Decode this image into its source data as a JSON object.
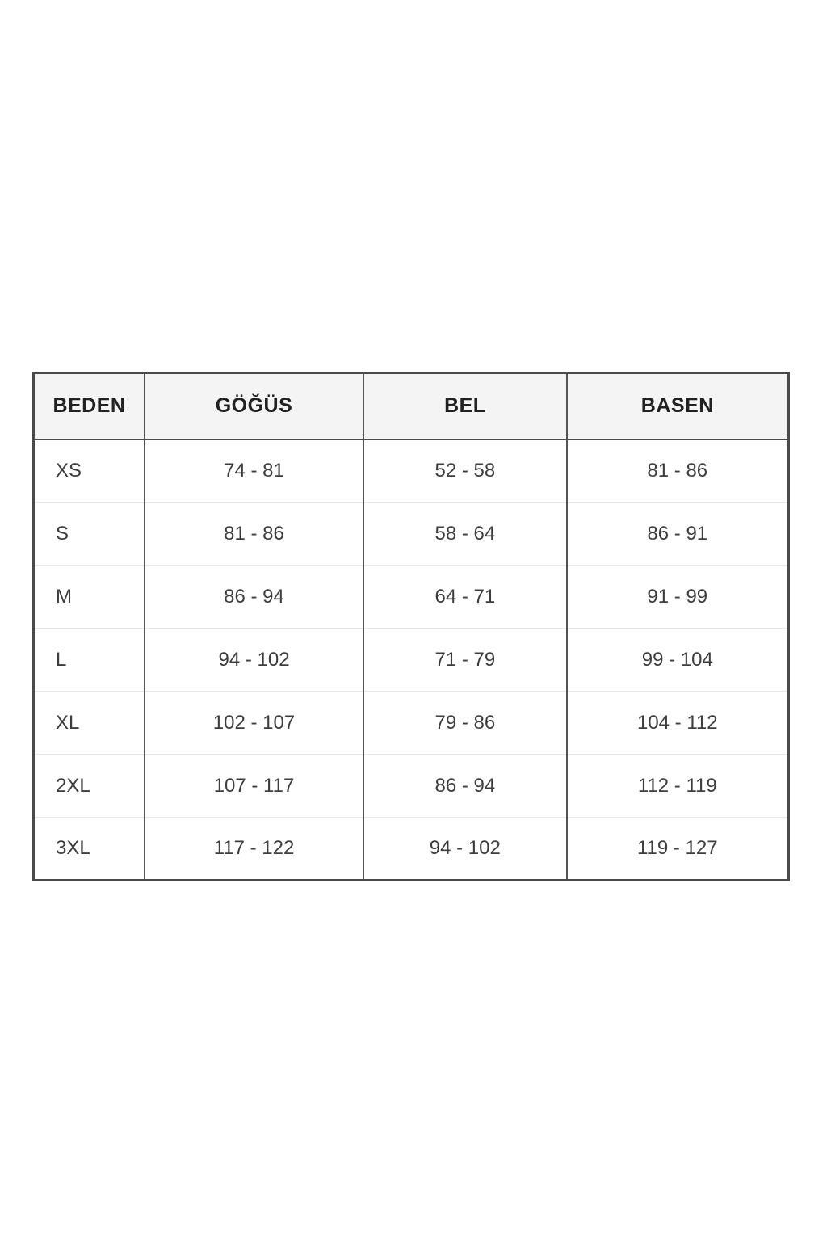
{
  "chart_data": {
    "type": "table",
    "title": "",
    "columns": [
      "BEDEN",
      "GÖĞÜS",
      "BEL",
      "BASEN"
    ],
    "rows": [
      [
        "XS",
        "74 - 81",
        "52 - 58",
        "81 - 86"
      ],
      [
        "S",
        "81 - 86",
        "58 - 64",
        "86 - 91"
      ],
      [
        "M",
        "86 - 94",
        "64 - 71",
        "91 - 99"
      ],
      [
        "L",
        "94 - 102",
        "71 - 79",
        "99 - 104"
      ],
      [
        "XL",
        "102 - 107",
        "79 - 86",
        "104 - 112"
      ],
      [
        "2XL",
        "107 - 117",
        "86 - 94",
        "112 - 119"
      ],
      [
        "3XL",
        "117 - 122",
        "94 - 102",
        "119 - 127"
      ]
    ],
    "layout": {
      "legend": "none",
      "grid": "table-borders"
    }
  },
  "colors": {
    "page_background": "#ffffff",
    "table_border": "#4a4a4a",
    "column_divider": "#555555",
    "row_divider": "#e8e8e8",
    "header_background": "#f4f4f4",
    "header_text": "#212121",
    "cell_text": "#3d3d3d"
  }
}
